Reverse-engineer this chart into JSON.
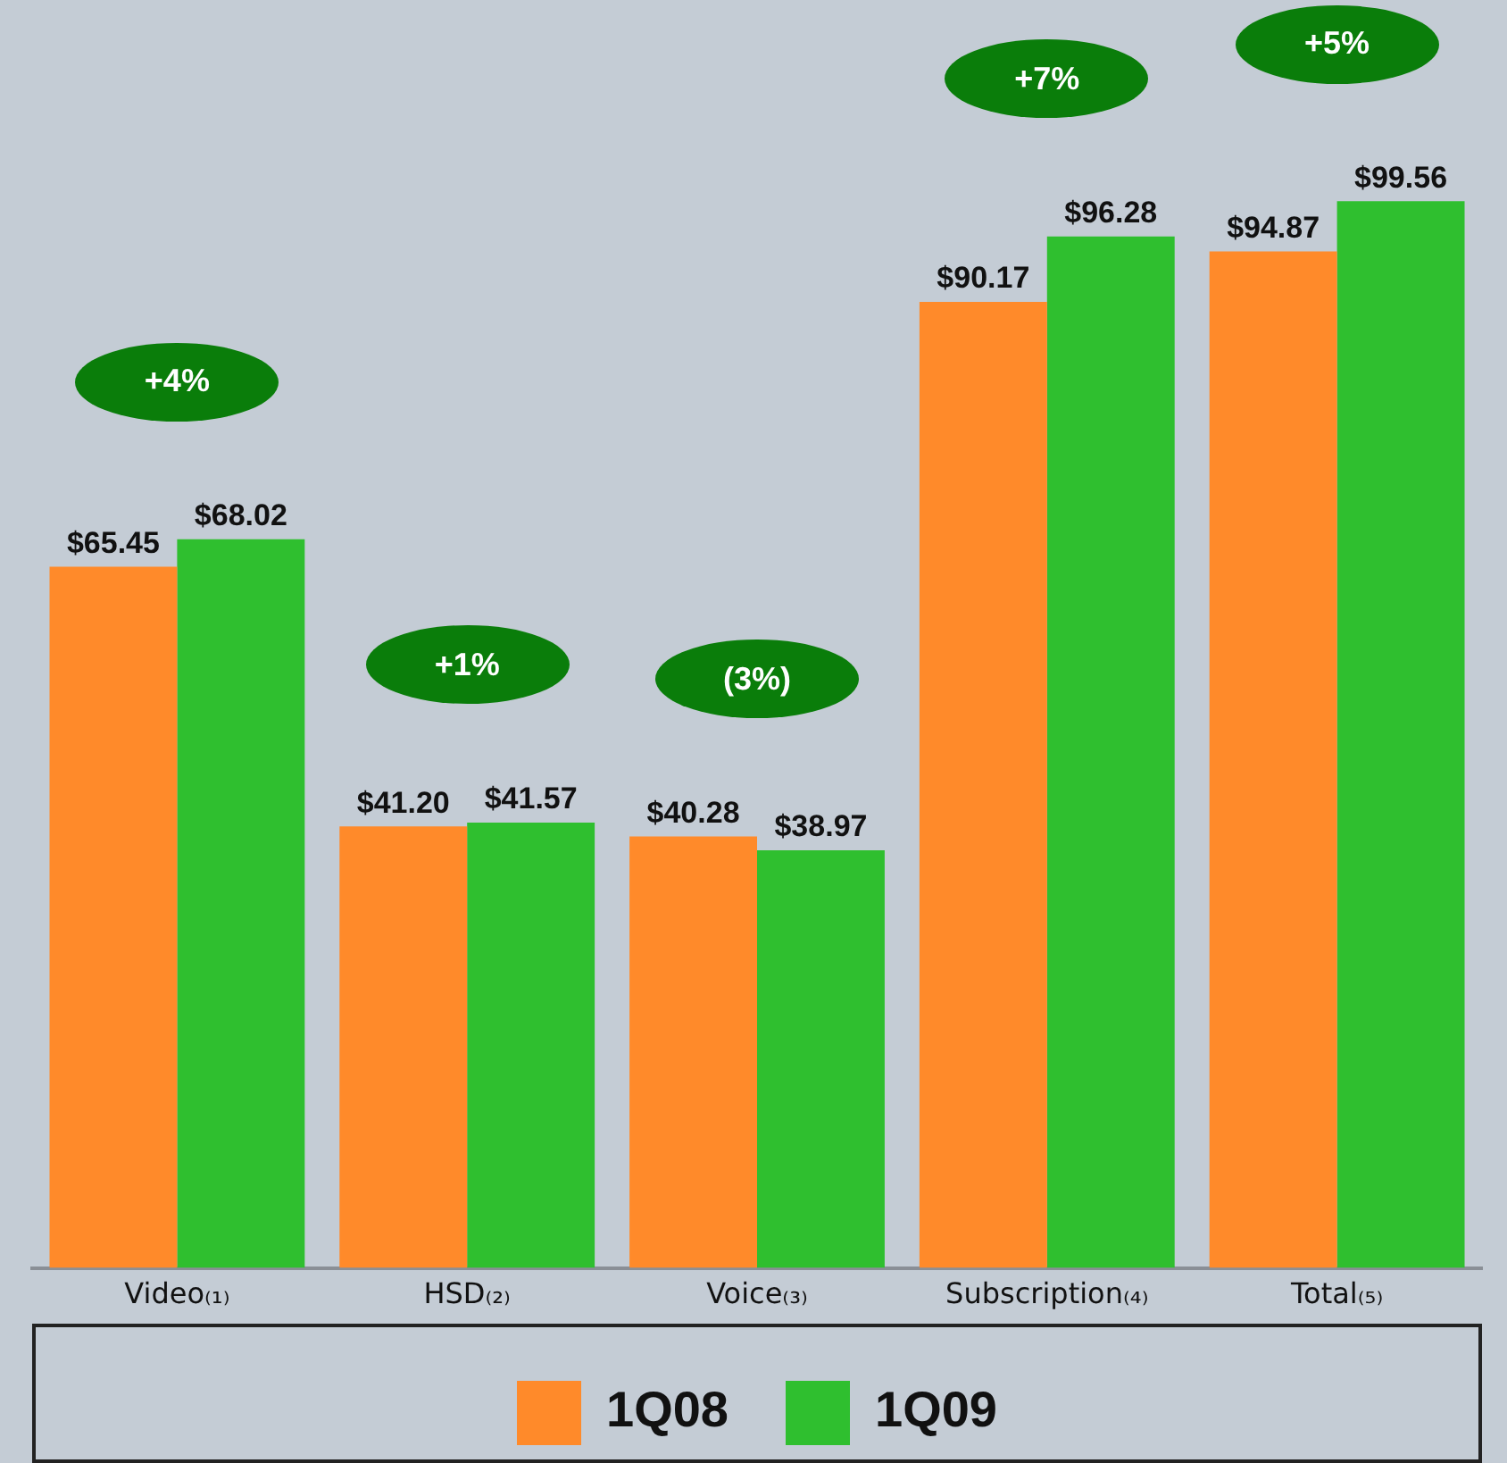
{
  "chart_data": {
    "type": "bar",
    "categories": [
      "Video₍₁₎",
      "HSD₍₂₎",
      "Voice₍₃₎",
      "Subscription₍₄₎",
      "Total₍₅₎"
    ],
    "series": [
      {
        "name": "1Q08",
        "color": "#ff8a2a",
        "values": [
          65.45,
          41.2,
          40.28,
          90.17,
          94.87
        ],
        "value_labels": [
          "$65.45",
          "$41.20",
          "$40.28",
          "$90.17",
          "$94.87"
        ]
      },
      {
        "name": "1Q09",
        "color": "#2fbf2f",
        "values": [
          68.02,
          41.57,
          38.97,
          96.28,
          99.56
        ],
        "value_labels": [
          "$68.02",
          "$41.57",
          "$38.97",
          "$96.28",
          "$99.56"
        ]
      }
    ],
    "annotations": [
      "+4%",
      "+1%",
      "(3%)",
      "+7%",
      "+5%"
    ],
    "grid": false,
    "legend": "bottom",
    "tick_labels": "x"
  }
}
